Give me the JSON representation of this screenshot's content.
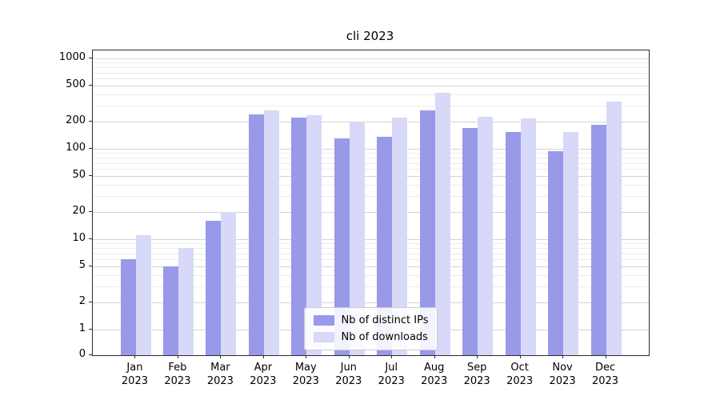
{
  "title": "cli 2023",
  "chart_data": {
    "type": "bar",
    "title": "cli 2023",
    "categories": [
      "Jan 2023",
      "Feb 2023",
      "Mar 2023",
      "Apr 2023",
      "May 2023",
      "Jun 2023",
      "Jul 2023",
      "Aug 2023",
      "Sep 2023",
      "Oct 2023",
      "Nov 2023",
      "Dec 2023"
    ],
    "series": [
      {
        "name": "Nb of distinct IPs",
        "color": "#9999ea",
        "values": [
          6,
          5,
          16,
          240,
          220,
          130,
          135,
          265,
          170,
          155,
          95,
          185
        ]
      },
      {
        "name": "Nb of downloads",
        "color": "#d8d8f9",
        "values": [
          11,
          8,
          20,
          265,
          235,
          200,
          220,
          420,
          225,
          215,
          155,
          330
        ]
      }
    ],
    "y_scale": "symlog",
    "y_ticks": [
      0,
      1,
      2,
      5,
      10,
      20,
      50,
      100,
      200,
      500,
      1000
    ],
    "ylim": [
      0,
      1300
    ],
    "xlabel": "",
    "ylabel": "",
    "grid": "horizontal major + faint log minor lines",
    "legend_position": "lower center inside plot"
  },
  "colors": {
    "axis": "#2b2b2b",
    "grid_major": "#d4d4d4",
    "grid_minor": "#ececec",
    "background": "#ffffff"
  }
}
